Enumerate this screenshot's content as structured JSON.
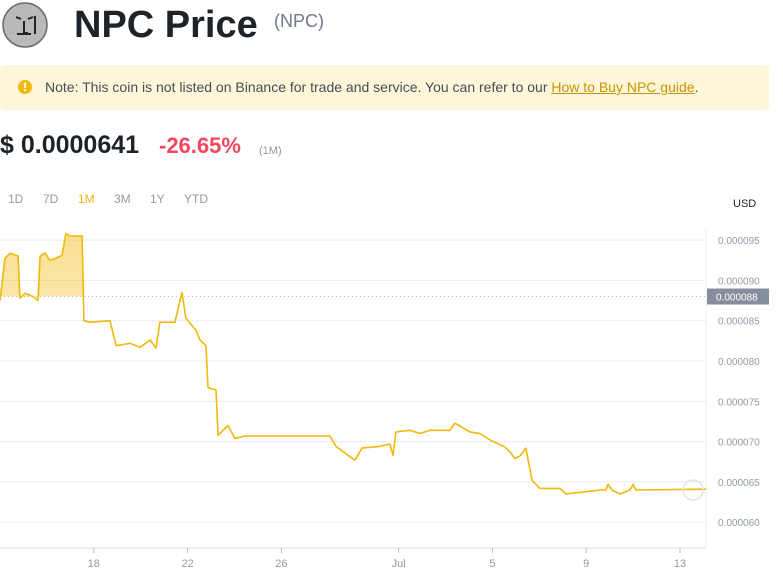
{
  "header": {
    "title": "NPC Price",
    "symbol": "(NPC)"
  },
  "note": {
    "text": "Note: This coin is not listed on Binance for trade and service. You can refer to our ",
    "link": "How to Buy NPC guide",
    "end": "."
  },
  "price": {
    "value": "$ 0.0000641",
    "change": "-26.65%",
    "period": "(1M)"
  },
  "tabs": [
    "1D",
    "7D",
    "1M",
    "3M",
    "1Y",
    "YTD"
  ],
  "active_tab": "1M",
  "chart_data": {
    "type": "line",
    "y_axis_label": "USD",
    "color": "#f0b90b",
    "grid": true,
    "reference_line": 8.8e-05,
    "xlim": [
      14,
      44.11
    ],
    "xticks": [
      18,
      22,
      26,
      {
        "value": 31,
        "label": "Jul"
      },
      {
        "value": 35,
        "label": "5"
      },
      {
        "value": 39,
        "label": "9"
      },
      {
        "value": 43,
        "label": "13"
      }
    ],
    "ylim": [
      5.68e-05,
      9.65e-05
    ],
    "yticks": [
      {
        "value": 6e-05,
        "label": "0.000060"
      },
      6.5e-05,
      {
        "value": 7e-05,
        "label": "0.000070"
      },
      7.5e-05,
      {
        "value": 8e-05,
        "label": "0.000080"
      },
      8.5e-05,
      {
        "value": 9e-05,
        "label": "0.000090"
      },
      9.5e-05
    ],
    "x": [
      14.0,
      14.21,
      14.43,
      14.77,
      14.85,
      15.07,
      15.41,
      15.62,
      15.71,
      15.92,
      16.13,
      16.35,
      16.64,
      16.81,
      16.99,
      17.5,
      17.58,
      17.84,
      18.69,
      18.95,
      19.54,
      19.97,
      20.4,
      20.65,
      20.82,
      21.46,
      21.76,
      21.93,
      22.36,
      22.53,
      22.78,
      22.87,
      23.21,
      23.3,
      23.72,
      24.02,
      24.45,
      28.07,
      28.33,
      28.84,
      29.14,
      29.44,
      30.2,
      30.63,
      30.76,
      30.89,
      31.48,
      31.91,
      32.34,
      33.19,
      33.4,
      34.04,
      34.47,
      34.9,
      35.54,
      35.75,
      35.96,
      36.17,
      36.43,
      36.69,
      37.03,
      37.88,
      38.14,
      38.73,
      39.59,
      39.84,
      39.93,
      40.1,
      40.44,
      40.87,
      41.0,
      41.12,
      44.11
    ],
    "values": [
      8.75e-05,
      9.27e-05,
      9.34e-05,
      9.3e-05,
      8.78e-05,
      8.84e-05,
      8.8e-05,
      8.75e-05,
      9.3e-05,
      9.34e-05,
      9.25e-05,
      9.27e-05,
      9.31e-05,
      9.58e-05,
      9.55e-05,
      9.55e-05,
      8.5e-05,
      8.48e-05,
      8.5e-05,
      8.19e-05,
      8.22e-05,
      8.17e-05,
      8.26e-05,
      8.16e-05,
      8.48e-05,
      8.48e-05,
      8.85e-05,
      8.53e-05,
      8.38e-05,
      8.26e-05,
      8.19e-05,
      7.67e-05,
      7.64e-05,
      7.08e-05,
      7.2e-05,
      7.04e-05,
      7.07e-05,
      7.07e-05,
      6.94e-05,
      6.83e-05,
      6.77e-05,
      6.92e-05,
      6.94e-05,
      6.97e-05,
      6.83e-05,
      7.12e-05,
      7.14e-05,
      7.1e-05,
      7.14e-05,
      7.14e-05,
      7.23e-05,
      7.12e-05,
      7.1e-05,
      7.02e-05,
      6.93e-05,
      6.87e-05,
      6.79e-05,
      6.82e-05,
      6.92e-05,
      6.52e-05,
      6.42e-05,
      6.42e-05,
      6.35e-05,
      6.37e-05,
      6.4e-05,
      6.4e-05,
      6.47e-05,
      6.4e-05,
      6.35e-05,
      6.4e-05,
      6.47e-05,
      6.4e-05,
      6.41e-05
    ]
  }
}
